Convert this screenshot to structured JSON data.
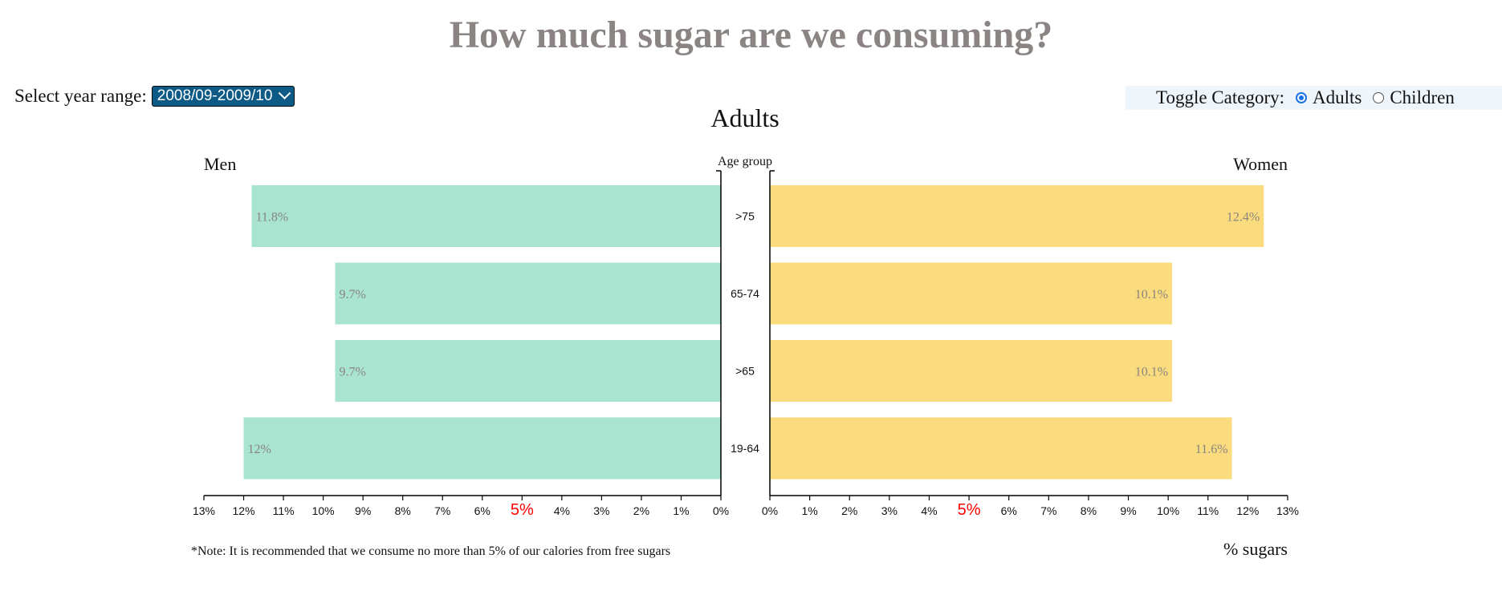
{
  "title": "How much sugar are we consuming?",
  "year_control": {
    "label": "Select year range:",
    "selected": "2008/09-2009/10"
  },
  "toggle": {
    "label": "Toggle Category:",
    "options": [
      {
        "label": "Adults",
        "checked": true
      },
      {
        "label": "Children",
        "checked": false
      }
    ]
  },
  "note": "*Note: It is recommended that we consume no more than 5% of our calories from free sugars",
  "chart_data": {
    "type": "bar",
    "title": "Adults",
    "left_label": "Men",
    "right_label": "Women",
    "center_label": "Age group",
    "xlabel": "% sugars",
    "categories": [
      ">75",
      "65-74",
      ">65",
      "19-64"
    ],
    "series": [
      {
        "name": "Men",
        "values": [
          11.8,
          9.7,
          9.7,
          12
        ],
        "labels": [
          "11.8%",
          "9.7%",
          "9.7%",
          "12%"
        ],
        "color": "#a8e4cf"
      },
      {
        "name": "Women",
        "values": [
          12.4,
          10.1,
          10.1,
          11.6
        ],
        "labels": [
          "12.4%",
          "10.1%",
          "10.1%",
          "11.6%"
        ],
        "color": "#fadb7d"
      }
    ],
    "xlim": [
      0,
      13
    ],
    "ticks": [
      "0%",
      "1%",
      "2%",
      "3%",
      "4%",
      "5%",
      "6%",
      "7%",
      "8%",
      "9%",
      "10%",
      "11%",
      "12%",
      "13%"
    ],
    "highlight_tick": 5,
    "highlight_color": "#ff0000",
    "value_label_color": "#8a8583",
    "grid": false
  }
}
